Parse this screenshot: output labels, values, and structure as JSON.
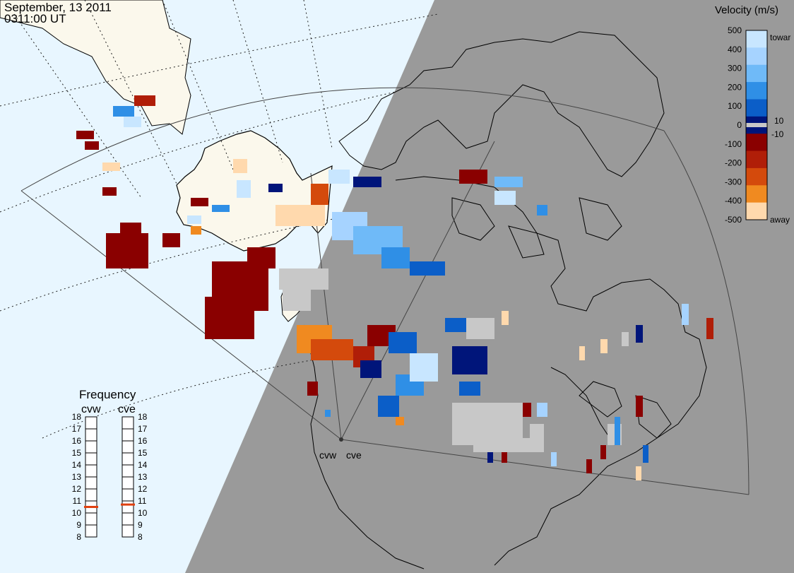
{
  "header": {
    "date": "September, 13 2011",
    "time": "0311:00 UT"
  },
  "velocity_scale": {
    "title": "Velocity (m/s)",
    "ticks": [
      "500",
      "400",
      "300",
      "200",
      "100",
      "0",
      "-100",
      "-200",
      "-300",
      "-400",
      "-500"
    ],
    "labels": {
      "toward": "toward",
      "away": "away",
      "plus10": "10",
      "minus10": "-10"
    },
    "colors": [
      "#c8e6ff",
      "#a6d3ff",
      "#6fbaf8",
      "#2f8fe6",
      "#0b5ec8",
      "#00157a",
      "#8a0000",
      "#b01e08",
      "#d44a0c",
      "#f08a20",
      "#ffd9ad"
    ]
  },
  "frequency_panel": {
    "title": "Frequency",
    "radars": [
      "cvw",
      "cve"
    ],
    "ticks": [
      "18",
      "17",
      "16",
      "15",
      "14",
      "13",
      "12",
      "11",
      "10",
      "9",
      "8"
    ],
    "selected_mhz": {
      "cvw": 10.5,
      "cve": 10.7
    },
    "marker_color": "#e0400f"
  },
  "radar_sites": [
    "cvw",
    "cve"
  ],
  "colors": {
    "ocean": "#e8f6ff",
    "night": "#9a9a9a",
    "land_day": "#fbf8ec",
    "ground_scatter": "#c8c8c8",
    "coast_line": "#000000"
  }
}
